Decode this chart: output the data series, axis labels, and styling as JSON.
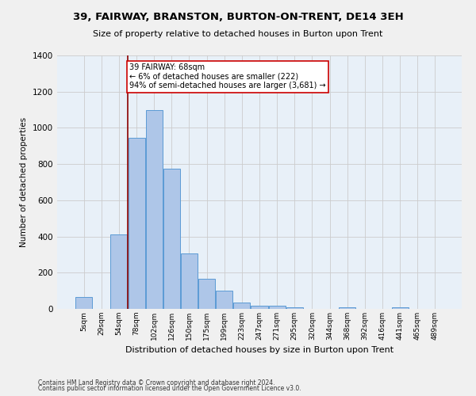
{
  "title1": "39, FAIRWAY, BRANSTON, BURTON-ON-TRENT, DE14 3EH",
  "title2": "Size of property relative to detached houses in Burton upon Trent",
  "xlabel": "Distribution of detached houses by size in Burton upon Trent",
  "ylabel": "Number of detached properties",
  "categories": [
    "5sqm",
    "29sqm",
    "54sqm",
    "78sqm",
    "102sqm",
    "126sqm",
    "150sqm",
    "175sqm",
    "199sqm",
    "223sqm",
    "247sqm",
    "271sqm",
    "295sqm",
    "320sqm",
    "344sqm",
    "368sqm",
    "392sqm",
    "416sqm",
    "441sqm",
    "465sqm",
    "489sqm"
  ],
  "values": [
    65,
    0,
    410,
    945,
    1100,
    775,
    305,
    165,
    100,
    35,
    18,
    18,
    10,
    0,
    0,
    10,
    0,
    0,
    10,
    0,
    0
  ],
  "bar_color": "#aec6e8",
  "bar_edge_color": "#5b9bd5",
  "grid_color": "#cccccc",
  "bg_color": "#e8f0f8",
  "vline_x": 2.5,
  "vline_color": "#8b0000",
  "annotation_text": "39 FAIRWAY: 68sqm\n← 6% of detached houses are smaller (222)\n94% of semi-detached houses are larger (3,681) →",
  "annotation_box_color": "#ffffff",
  "annotation_border_color": "#cc0000",
  "ylim": [
    0,
    1400
  ],
  "yticks": [
    0,
    200,
    400,
    600,
    800,
    1000,
    1200,
    1400
  ],
  "footer1": "Contains HM Land Registry data © Crown copyright and database right 2024.",
  "footer2": "Contains public sector information licensed under the Open Government Licence v3.0.",
  "fig_bg": "#f0f0f0"
}
